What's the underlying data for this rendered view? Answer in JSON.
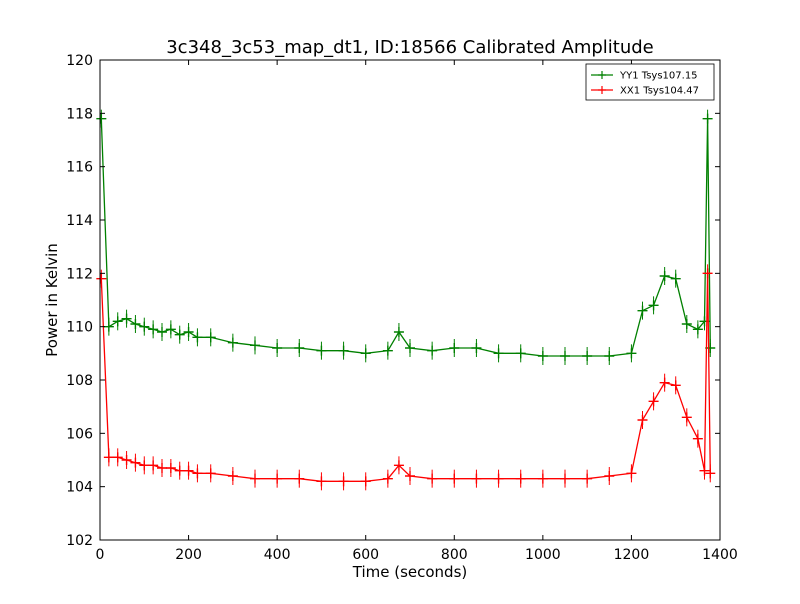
{
  "chart_data": {
    "type": "line",
    "title": "3c348_3c53_map_dt1, ID:18566 Calibrated Amplitude",
    "xlabel": "Time (seconds)",
    "ylabel": "Power in Kelvin",
    "xlim": [
      0,
      1400
    ],
    "ylim": [
      102,
      120
    ],
    "xticks": [
      0,
      200,
      400,
      600,
      800,
      1000,
      1200,
      1400
    ],
    "yticks": [
      102,
      104,
      106,
      108,
      110,
      112,
      114,
      116,
      118,
      120
    ],
    "grid": false,
    "legend_position": "top-right",
    "series": [
      {
        "name": "YY1 Tsys107.15",
        "color": "#008000",
        "x": [
          3,
          20,
          40,
          60,
          80,
          100,
          120,
          140,
          160,
          180,
          200,
          220,
          250,
          300,
          350,
          400,
          450,
          500,
          550,
          600,
          650,
          675,
          700,
          750,
          800,
          850,
          900,
          950,
          1000,
          1050,
          1100,
          1150,
          1200,
          1225,
          1250,
          1275,
          1300,
          1325,
          1350,
          1365,
          1372,
          1378
        ],
        "y": [
          117.8,
          110.0,
          110.2,
          110.3,
          110.1,
          110.0,
          109.9,
          109.8,
          109.9,
          109.7,
          109.8,
          109.6,
          109.6,
          109.4,
          109.3,
          109.2,
          109.2,
          109.1,
          109.1,
          109.0,
          109.1,
          109.8,
          109.2,
          109.1,
          109.2,
          109.2,
          109.0,
          109.0,
          108.9,
          108.9,
          108.9,
          108.9,
          109.0,
          110.6,
          110.8,
          111.9,
          111.8,
          110.1,
          109.9,
          110.2,
          117.8,
          109.2
        ]
      },
      {
        "name": "XX1 Tsys104.47",
        "color": "#ff0000",
        "x": [
          3,
          20,
          40,
          60,
          80,
          100,
          120,
          140,
          160,
          180,
          200,
          220,
          250,
          300,
          350,
          400,
          450,
          500,
          550,
          600,
          650,
          675,
          700,
          750,
          800,
          850,
          900,
          950,
          1000,
          1050,
          1100,
          1150,
          1200,
          1225,
          1250,
          1275,
          1300,
          1325,
          1350,
          1365,
          1372,
          1378
        ],
        "y": [
          111.8,
          105.1,
          105.1,
          105.0,
          104.9,
          104.8,
          104.8,
          104.7,
          104.7,
          104.6,
          104.6,
          104.5,
          104.5,
          104.4,
          104.3,
          104.3,
          104.3,
          104.2,
          104.2,
          104.2,
          104.3,
          104.8,
          104.4,
          104.3,
          104.3,
          104.3,
          104.3,
          104.3,
          104.3,
          104.3,
          104.3,
          104.4,
          104.5,
          106.5,
          107.2,
          107.9,
          107.8,
          106.6,
          105.8,
          104.6,
          112.0,
          104.5
        ]
      }
    ]
  }
}
